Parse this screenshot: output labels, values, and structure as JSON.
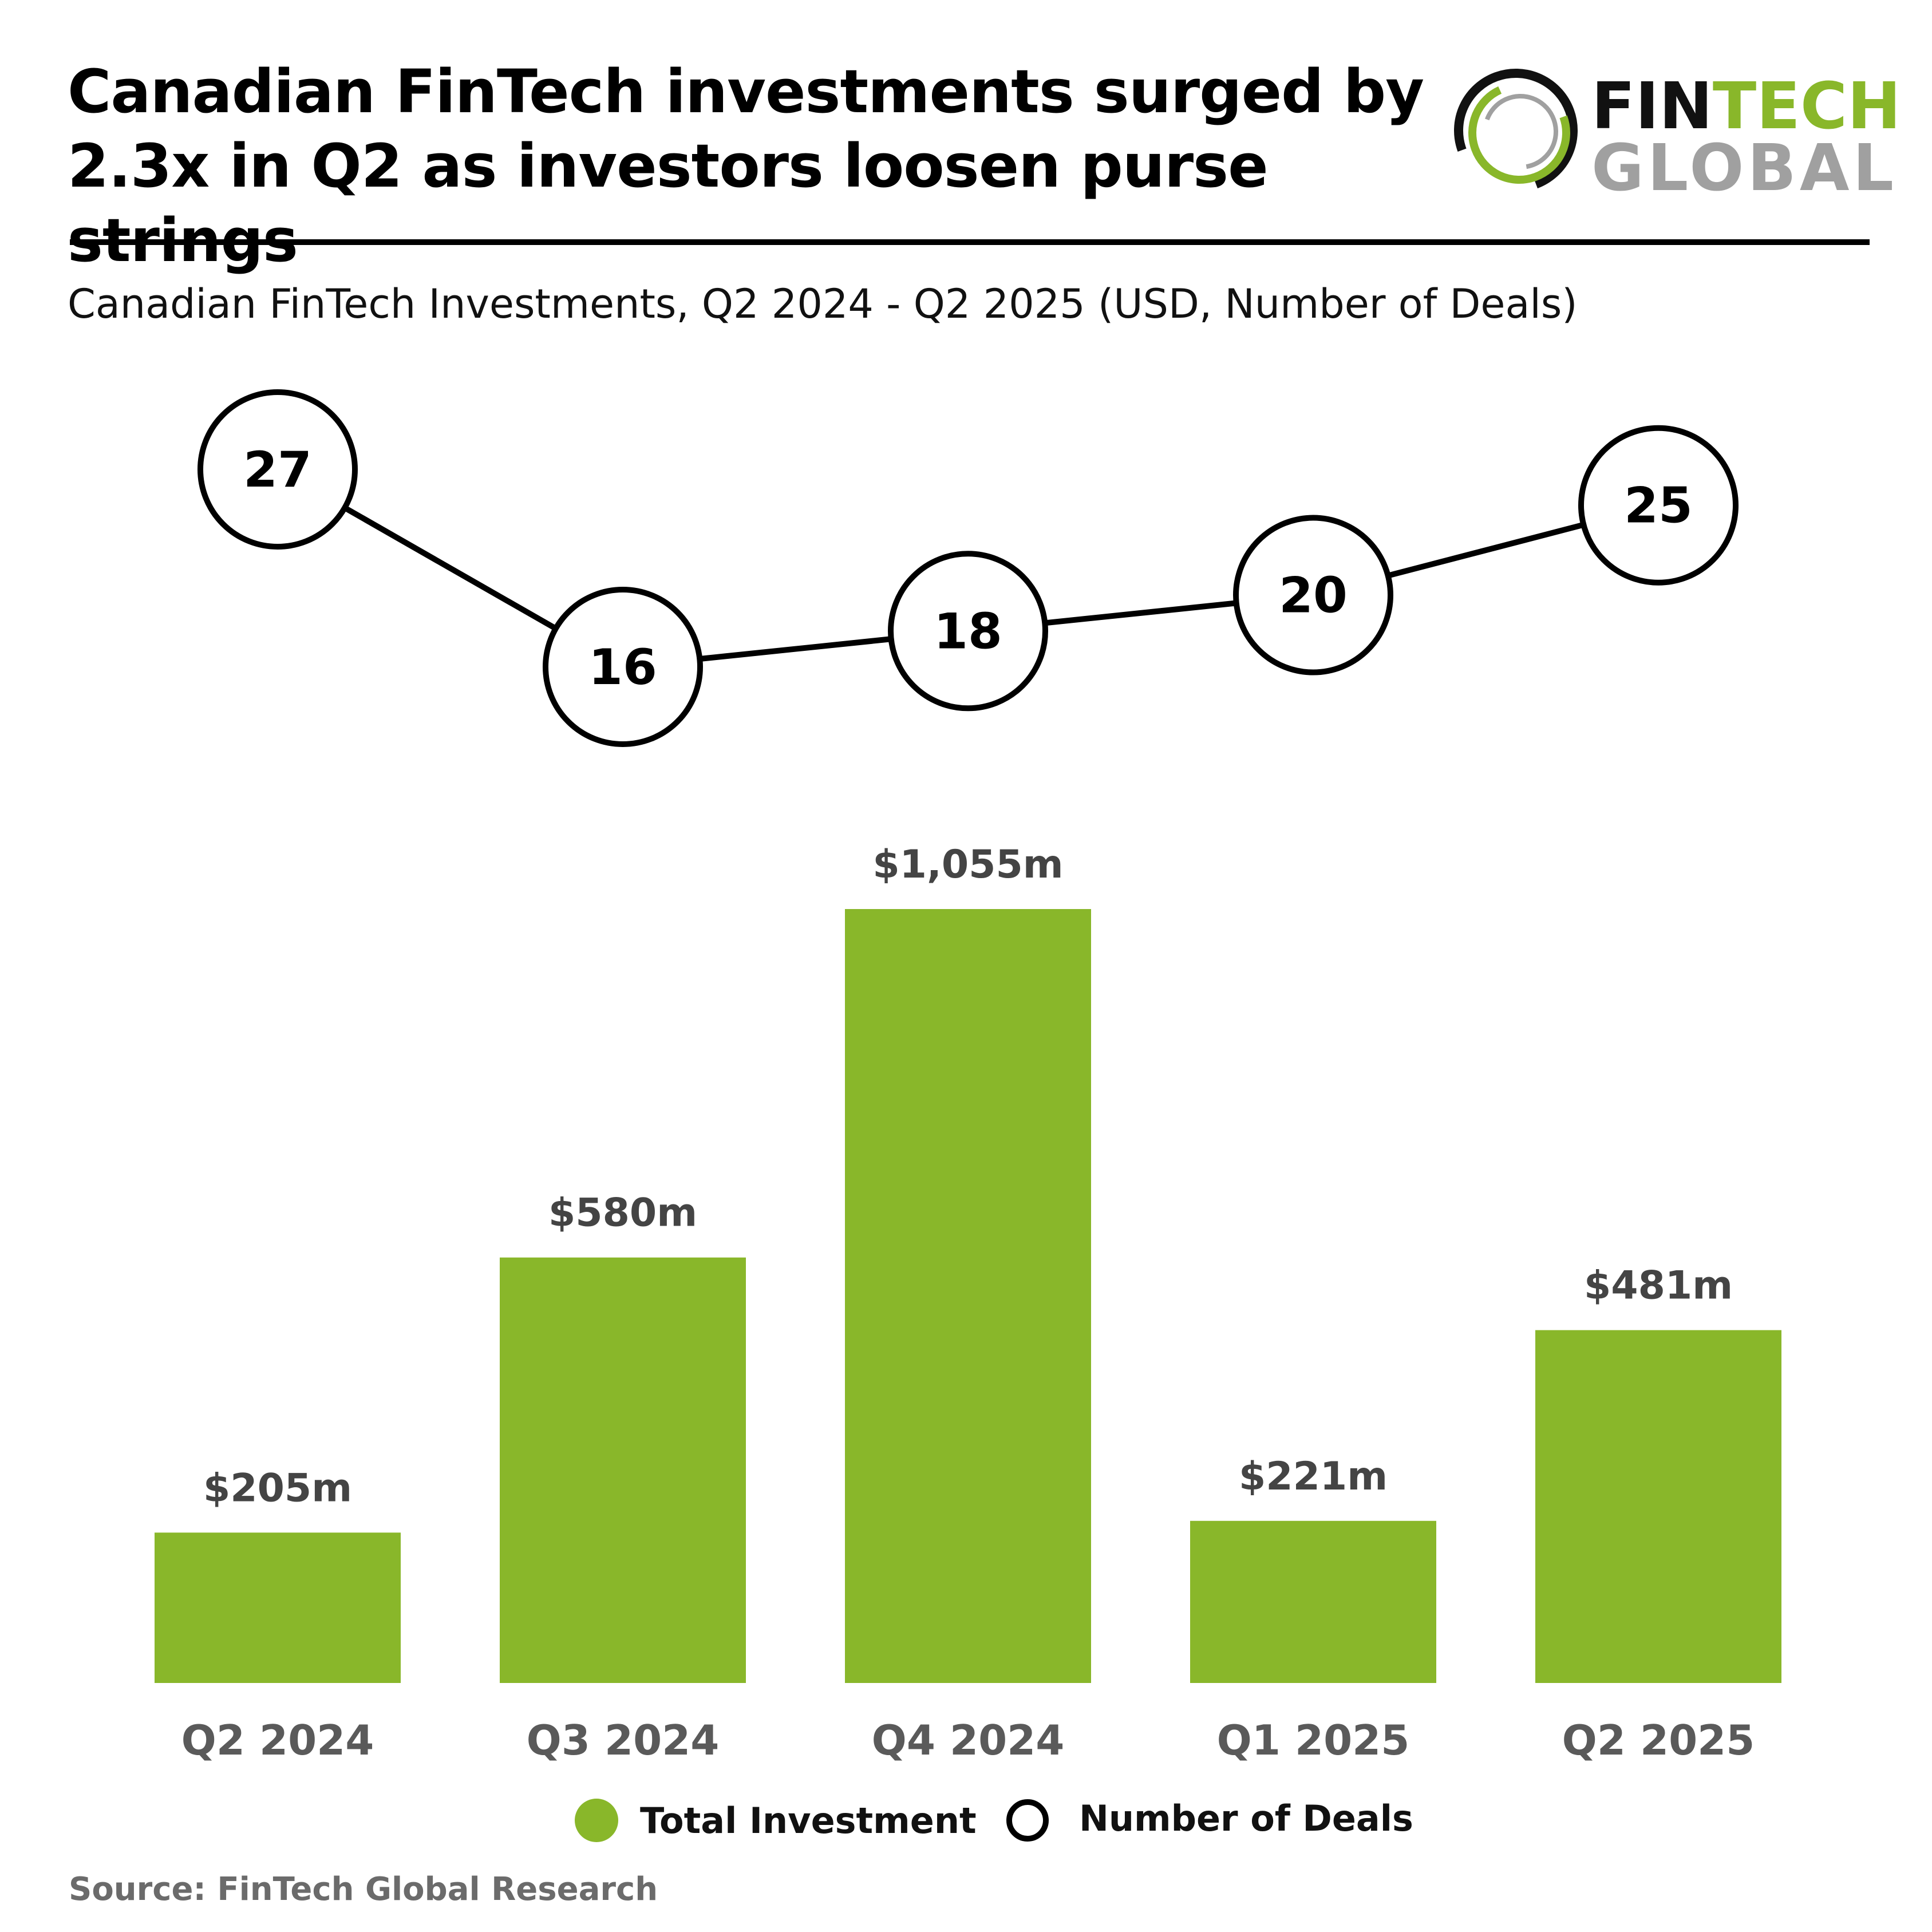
{
  "header": {
    "title": "Canadian FinTech investments surged by 2.3x in Q2 as investors loosen purse strings",
    "subtitle": "Canadian FinTech Investments, Q2 2024 - Q2 2025 (USD, Number of Deals)"
  },
  "logo": {
    "word1a": "FIN",
    "word1b": "TECH",
    "word2": "GLOBAL"
  },
  "source": "Source: FinTech Global Research",
  "colors": {
    "bar": "#89b72a",
    "line": "#000000",
    "axis_label": "#5a5a5a",
    "logo_gray": "#a0a0a0"
  },
  "chart_data": {
    "type": "bar",
    "categories": [
      "Q2 2024",
      "Q3 2024",
      "Q4 2024",
      "Q1 2025",
      "Q2 2025"
    ],
    "series": [
      {
        "name": "Total Investment",
        "type": "bar",
        "values": [
          205,
          580,
          1055,
          221,
          481
        ],
        "labels": [
          "$205m",
          "$580m",
          "$1,055m",
          "$221m",
          "$481m"
        ]
      },
      {
        "name": "Number of Deals",
        "type": "line",
        "values": [
          27,
          16,
          18,
          20,
          25
        ],
        "labels": [
          "27",
          "16",
          "18",
          "20",
          "25"
        ]
      }
    ],
    "legend": [
      "Total Investment",
      "Number of Deals"
    ],
    "legend_position": "bottom",
    "grid": false
  }
}
